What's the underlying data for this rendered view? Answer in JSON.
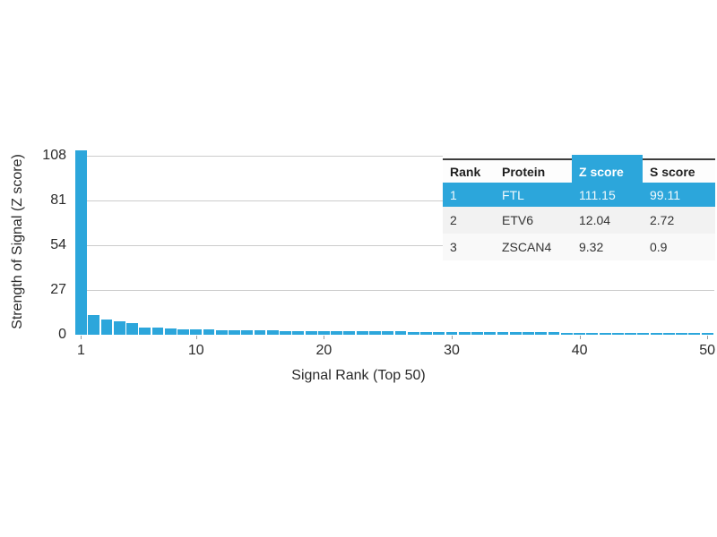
{
  "chart_data": {
    "type": "bar",
    "title": "",
    "xlabel": "Signal Rank (Top 50)",
    "ylabel": "Strength of Signal (Z score)",
    "x": [
      1,
      2,
      3,
      4,
      5,
      6,
      7,
      8,
      9,
      10,
      11,
      12,
      13,
      14,
      15,
      16,
      17,
      18,
      19,
      20,
      21,
      22,
      23,
      24,
      25,
      26,
      27,
      28,
      29,
      30,
      31,
      32,
      33,
      34,
      35,
      36,
      37,
      38,
      39,
      40,
      41,
      42,
      43,
      44,
      45,
      46,
      47,
      48,
      49,
      50
    ],
    "values": [
      111.15,
      12.04,
      9.32,
      8.0,
      6.8,
      4.6,
      4.4,
      4.0,
      3.4,
      3.2,
      3.0,
      2.9,
      2.8,
      2.7,
      2.6,
      2.5,
      2.4,
      2.35,
      2.3,
      2.25,
      2.2,
      2.15,
      2.1,
      2.05,
      2.0,
      1.95,
      1.9,
      1.85,
      1.8,
      1.75,
      1.7,
      1.65,
      1.6,
      1.55,
      1.5,
      1.45,
      1.4,
      1.38,
      1.35,
      1.32,
      1.3,
      1.27,
      1.25,
      1.22,
      1.2,
      1.17,
      1.15,
      1.12,
      1.1,
      1.08
    ],
    "yticks": [
      0,
      27,
      54,
      81,
      108
    ],
    "xticks": [
      1,
      10,
      20,
      30,
      40,
      50
    ],
    "ylim": [
      0,
      115
    ],
    "grid": "horizontal",
    "legend": "none",
    "bar_color": "#2CA6DB",
    "gridline_color": "#cccccc"
  },
  "table": {
    "headers": [
      "Rank",
      "Protein",
      "Z score",
      "S score"
    ],
    "highlight_column": "Z score",
    "highlight_color": "#2CA6DB",
    "rows": [
      {
        "rank": "1",
        "protein": "FTL",
        "z_score": "111.15",
        "s_score": "99.11",
        "highlighted": true
      },
      {
        "rank": "2",
        "protein": "ETV6",
        "z_score": "12.04",
        "s_score": "2.72",
        "highlighted": false
      },
      {
        "rank": "3",
        "protein": "ZSCAN4",
        "z_score": "9.32",
        "s_score": "0.9",
        "highlighted": false
      }
    ],
    "row_bg_alt": "#f2f2f2",
    "row_bg": "#f9f9f9"
  }
}
